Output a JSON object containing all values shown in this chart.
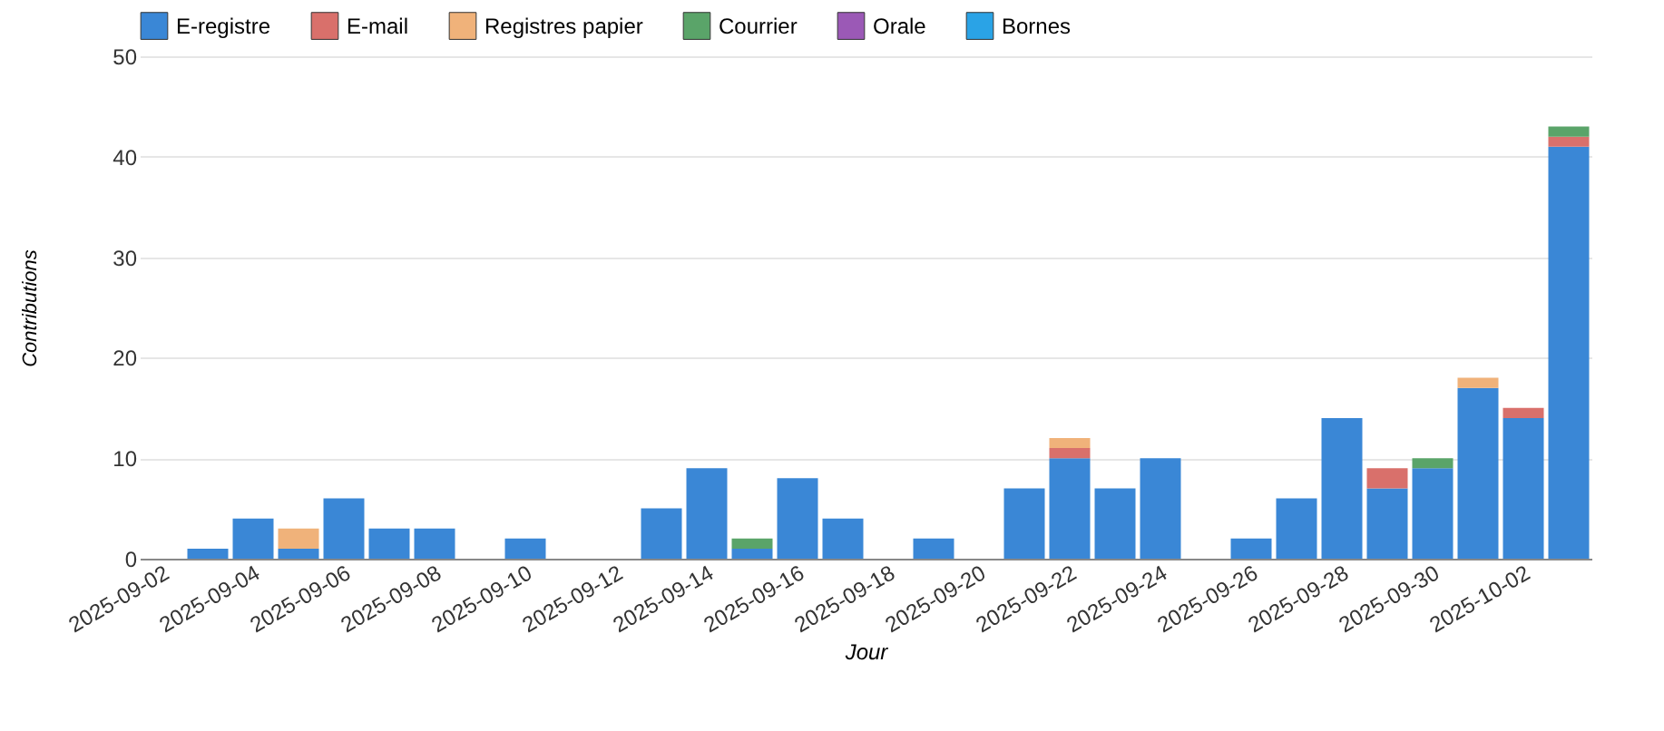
{
  "chart_data": {
    "type": "bar",
    "stacked": true,
    "xlabel": "Jour",
    "ylabel": "Contributions",
    "categories": [
      "2025-09-02",
      null,
      "2025-09-04",
      null,
      "2025-09-06",
      null,
      "2025-09-08",
      null,
      "2025-09-10",
      null,
      "2025-09-12",
      null,
      "2025-09-14",
      null,
      "2025-09-16",
      null,
      "2025-09-18",
      null,
      "2025-09-20",
      null,
      "2025-09-22",
      null,
      "2025-09-24",
      null,
      "2025-09-26",
      null,
      "2025-09-28",
      null,
      "2025-09-30",
      null,
      "2025-10-02",
      null
    ],
    "series": [
      {
        "name": "E-registre",
        "color": "#3a87d6",
        "values": [
          null,
          1,
          4,
          1,
          6,
          3,
          3,
          null,
          2,
          null,
          null,
          5,
          9,
          1,
          8,
          4,
          null,
          2,
          null,
          7,
          10,
          7,
          10,
          null,
          2,
          6,
          14,
          7,
          9,
          17,
          14,
          41
        ]
      },
      {
        "name": "E-mail",
        "color": "#d9706b",
        "values": [
          null,
          null,
          null,
          null,
          null,
          null,
          null,
          null,
          null,
          null,
          null,
          null,
          null,
          null,
          null,
          null,
          null,
          null,
          null,
          null,
          1,
          null,
          null,
          null,
          null,
          null,
          null,
          2,
          null,
          null,
          1,
          1
        ]
      },
      {
        "name": "Registres papier",
        "color": "#f0b27a",
        "values": [
          null,
          null,
          null,
          2,
          null,
          null,
          null,
          null,
          null,
          null,
          null,
          null,
          null,
          null,
          null,
          null,
          null,
          null,
          null,
          null,
          1,
          null,
          null,
          null,
          null,
          null,
          null,
          null,
          null,
          1,
          null,
          null
        ]
      },
      {
        "name": "Courrier",
        "color": "#5aa469",
        "values": [
          null,
          null,
          null,
          null,
          null,
          null,
          null,
          null,
          null,
          null,
          null,
          null,
          null,
          1,
          null,
          null,
          null,
          null,
          null,
          null,
          null,
          null,
          null,
          null,
          null,
          null,
          null,
          null,
          1,
          null,
          null,
          1
        ]
      },
      {
        "name": "Orale",
        "color": "#9b59b6",
        "values": [
          null,
          null,
          null,
          null,
          null,
          null,
          null,
          null,
          null,
          null,
          null,
          null,
          null,
          null,
          null,
          null,
          null,
          null,
          null,
          null,
          null,
          null,
          null,
          null,
          null,
          null,
          null,
          null,
          null,
          null,
          null,
          null
        ]
      },
      {
        "name": "Bornes",
        "color": "#2aa3e6",
        "values": [
          null,
          null,
          null,
          null,
          null,
          null,
          null,
          null,
          null,
          null,
          null,
          null,
          null,
          null,
          null,
          null,
          null,
          null,
          null,
          null,
          null,
          null,
          null,
          null,
          null,
          null,
          null,
          null,
          null,
          null,
          null,
          null
        ]
      }
    ],
    "ylim": [
      0,
      50
    ],
    "yticks": [
      0,
      10,
      20,
      30,
      40,
      50
    ],
    "grid": "y",
    "legend": "top"
  }
}
